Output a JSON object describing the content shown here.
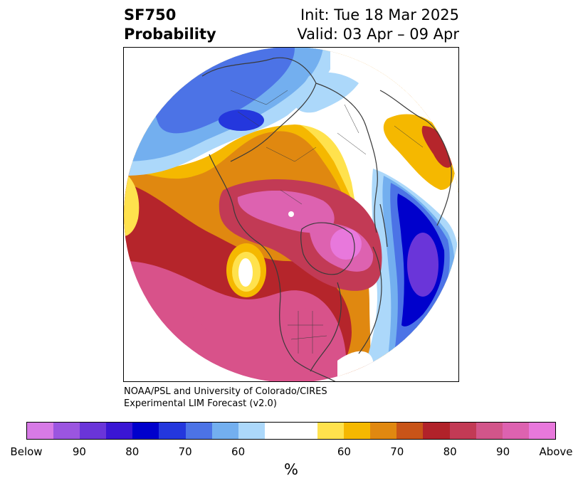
{
  "header": {
    "title_line1": "SF750",
    "title_line2": "Probability",
    "init_text": "Init: Tue 18 Mar 2025",
    "valid_text": "Valid: 03 Apr – 09 Apr"
  },
  "credit": {
    "line1": "NOAA/PSL and University of Colorado/CIRES",
    "line2": "Experimental LIM Forecast (v2.0)"
  },
  "colorbar": {
    "colors": [
      "#d77ae6",
      "#9b55e0",
      "#6a35d9",
      "#3a16d4",
      "#0000cc",
      "#2437dd",
      "#4c73e6",
      "#73afef",
      "#acd8fa",
      "#ffffff",
      "#ffffff",
      "#ffe24d",
      "#f5b800",
      "#e08810",
      "#c85418",
      "#b1222a",
      "#c23a55",
      "#d2558a",
      "#dd62b0",
      "#e878dc"
    ],
    "tick_labels": [
      "Below",
      "90",
      "80",
      "70",
      "60",
      "60",
      "70",
      "80",
      "90",
      "Above"
    ],
    "unit": "%"
  },
  "map": {
    "projection": "north-polar-stereographic",
    "fill_colors": {
      "outer_warm": "#d8528a",
      "red": "#b5252b",
      "orange_red": "#c85418",
      "orange": "#e08810",
      "gold": "#f5b800",
      "yellow": "#ffe24d",
      "light_blue": "#acd8fa",
      "sky_blue": "#73afef",
      "blue": "#4c73e6",
      "royal_blue": "#2437dd",
      "navy": "#0000cc",
      "indigo": "#6a35d9",
      "crimson": "#c23a55",
      "pink": "#dd62b0",
      "magenta": "#e878dc",
      "coastline": "#3a3a3a"
    }
  }
}
